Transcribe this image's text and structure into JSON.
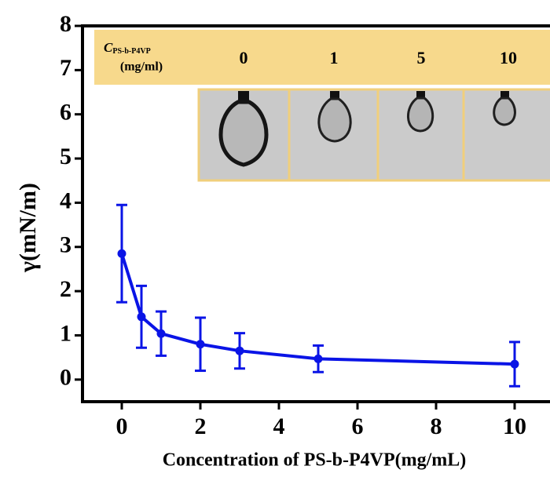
{
  "chart_data": {
    "type": "line",
    "xlabel": "Concentration of PS-b-P4VP(mg/mL)",
    "ylabel": "γ(mN/m)",
    "x": [
      0,
      0.5,
      1,
      2,
      3,
      5,
      10
    ],
    "series": [
      {
        "color": "#0a14e6",
        "values": [
          2.85,
          1.42,
          1.04,
          0.8,
          0.65,
          0.47,
          0.35
        ],
        "errors": [
          1.1,
          0.7,
          0.5,
          0.6,
          0.4,
          0.3,
          0.5
        ]
      }
    ],
    "xlim": [
      -1,
      10.9
    ],
    "xticks": [
      0,
      2,
      4,
      6,
      8,
      10
    ],
    "ylim": [
      -0.5,
      8
    ],
    "yticks": [
      0,
      1,
      2,
      3,
      4,
      5,
      6,
      7,
      8
    ],
    "inset": {
      "symbol": "C",
      "subscript": "PS-b-P4VP",
      "unit": "(mg/ml)",
      "columns": [
        "0",
        "1",
        "5",
        "10"
      ]
    }
  }
}
